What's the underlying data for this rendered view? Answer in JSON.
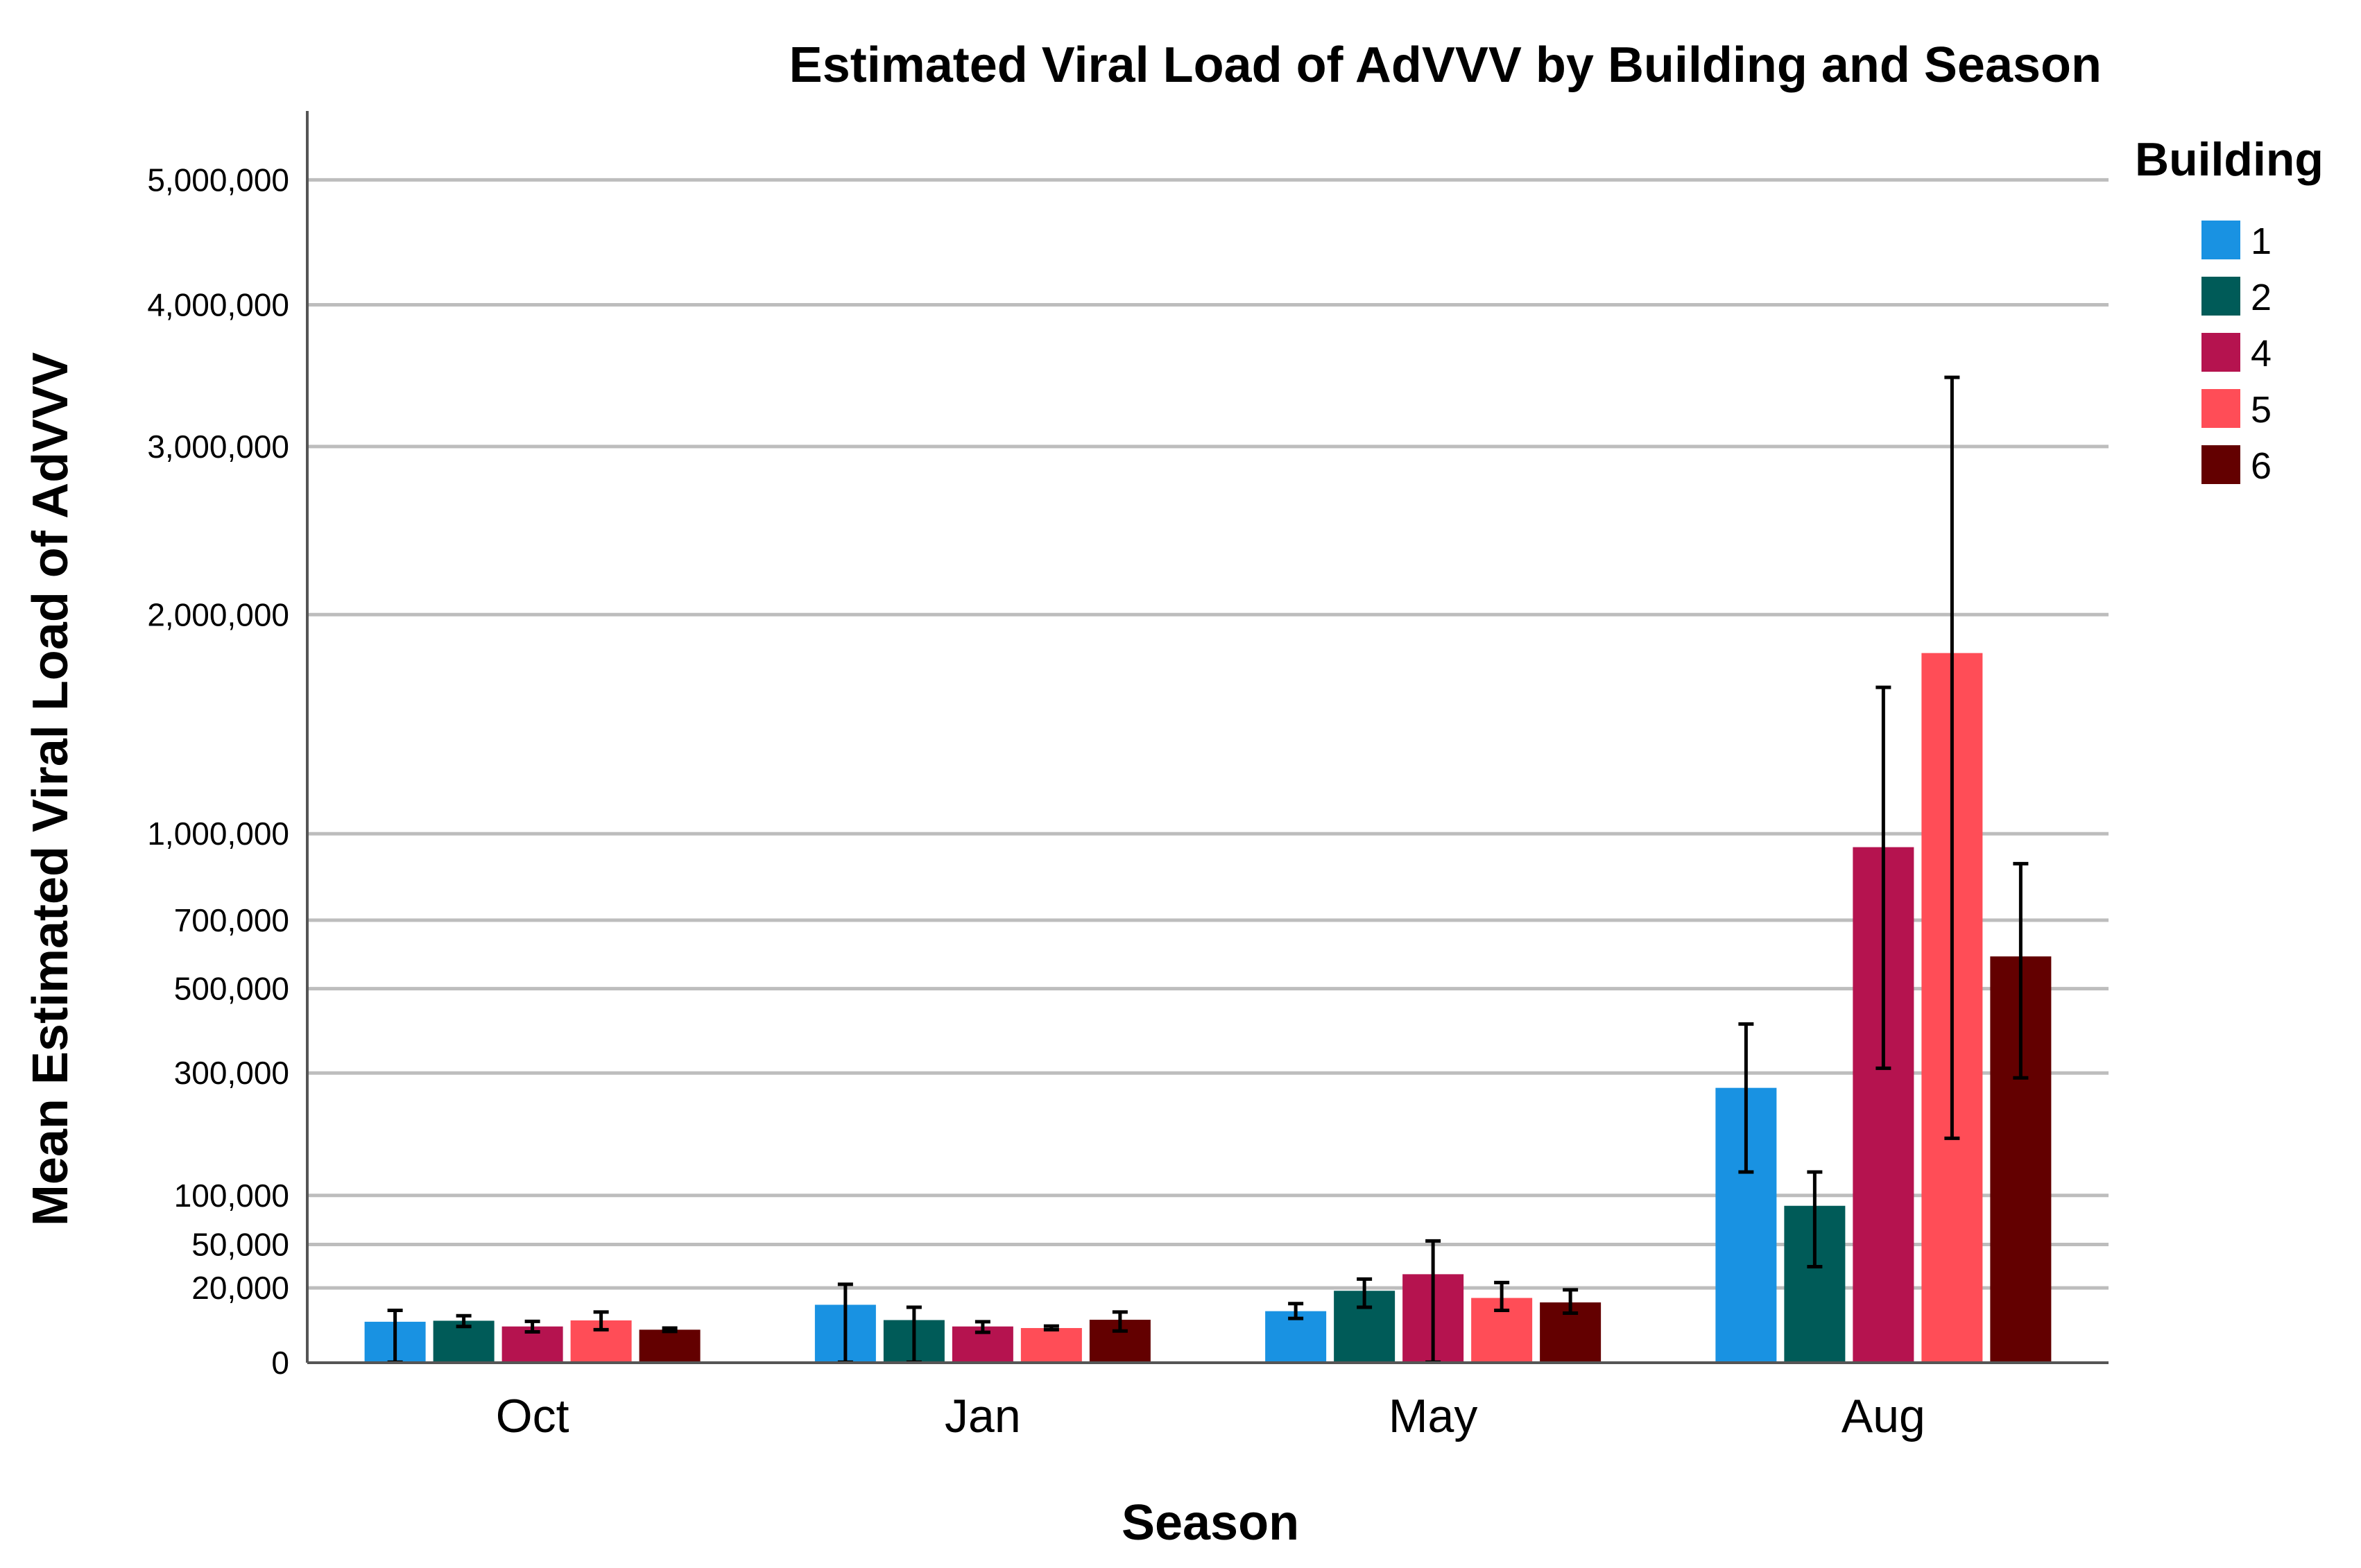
{
  "chart_data": {
    "type": "bar",
    "title": "Estimated Viral Load of AdVVV by Building and Season",
    "xlabel": "Season",
    "ylabel": "Mean Estimated Viral Load of AdVVV",
    "categories": [
      "Oct",
      "Jan",
      "May",
      "Aug"
    ],
    "y_ticks": [
      {
        "value": 0,
        "label": "0"
      },
      {
        "value": 20000,
        "label": "20,000"
      },
      {
        "value": 50000,
        "label": "50,000"
      },
      {
        "value": 100000,
        "label": "100,000"
      },
      {
        "value": 300000,
        "label": "300,000"
      },
      {
        "value": 500000,
        "label": "500,000"
      },
      {
        "value": 700000,
        "label": "700,000"
      },
      {
        "value": 1000000,
        "label": "1,000,000"
      },
      {
        "value": 2000000,
        "label": "2,000,000"
      },
      {
        "value": 3000000,
        "label": "3,000,000"
      },
      {
        "value": 4000000,
        "label": "4,000,000"
      },
      {
        "value": 5000000,
        "label": "5,000,000"
      }
    ],
    "ylim": [
      0,
      5600000
    ],
    "y_scale": "square-root",
    "grid": true,
    "legend_title": "Building",
    "legend_position": "top-right",
    "series": [
      {
        "name": "1",
        "color": "#1992e2",
        "values": [
          6000,
          12000,
          9500,
          270000
        ],
        "errors": [
          [
            1,
            9800
          ],
          [
            1,
            22000
          ],
          [
            7000,
            12500
          ],
          [
            130000,
            410000
          ]
        ]
      },
      {
        "name": "2",
        "color": "#005b58",
        "values": [
          6300,
          6500,
          18500,
          88000
        ],
        "errors": [
          [
            4700,
            7900
          ],
          [
            1,
            11000
          ],
          [
            11000,
            25000
          ],
          [
            33000,
            130000
          ]
        ]
      },
      {
        "name": "4",
        "color": "#b5134f",
        "values": [
          4700,
          4700,
          28000,
          950000
        ],
        "errors": [
          [
            3400,
            6100
          ],
          [
            3300,
            6000
          ],
          [
            1,
            53000
          ],
          [
            310000,
            1630000
          ]
        ]
      },
      {
        "name": "5",
        "color": "#ff4d57",
        "values": [
          6400,
          4300,
          15000,
          1800000
        ],
        "errors": [
          [
            3900,
            9200
          ],
          [
            3900,
            4800
          ],
          [
            9800,
            23000
          ],
          [
            180000,
            3470000
          ]
        ]
      },
      {
        "name": "6",
        "color": "#630000",
        "values": [
          3900,
          6600,
          13000,
          590000
        ],
        "errors": [
          [
            3500,
            4300
          ],
          [
            3600,
            9200
          ],
          [
            8800,
            19000
          ],
          [
            290000,
            890000
          ]
        ]
      }
    ]
  }
}
